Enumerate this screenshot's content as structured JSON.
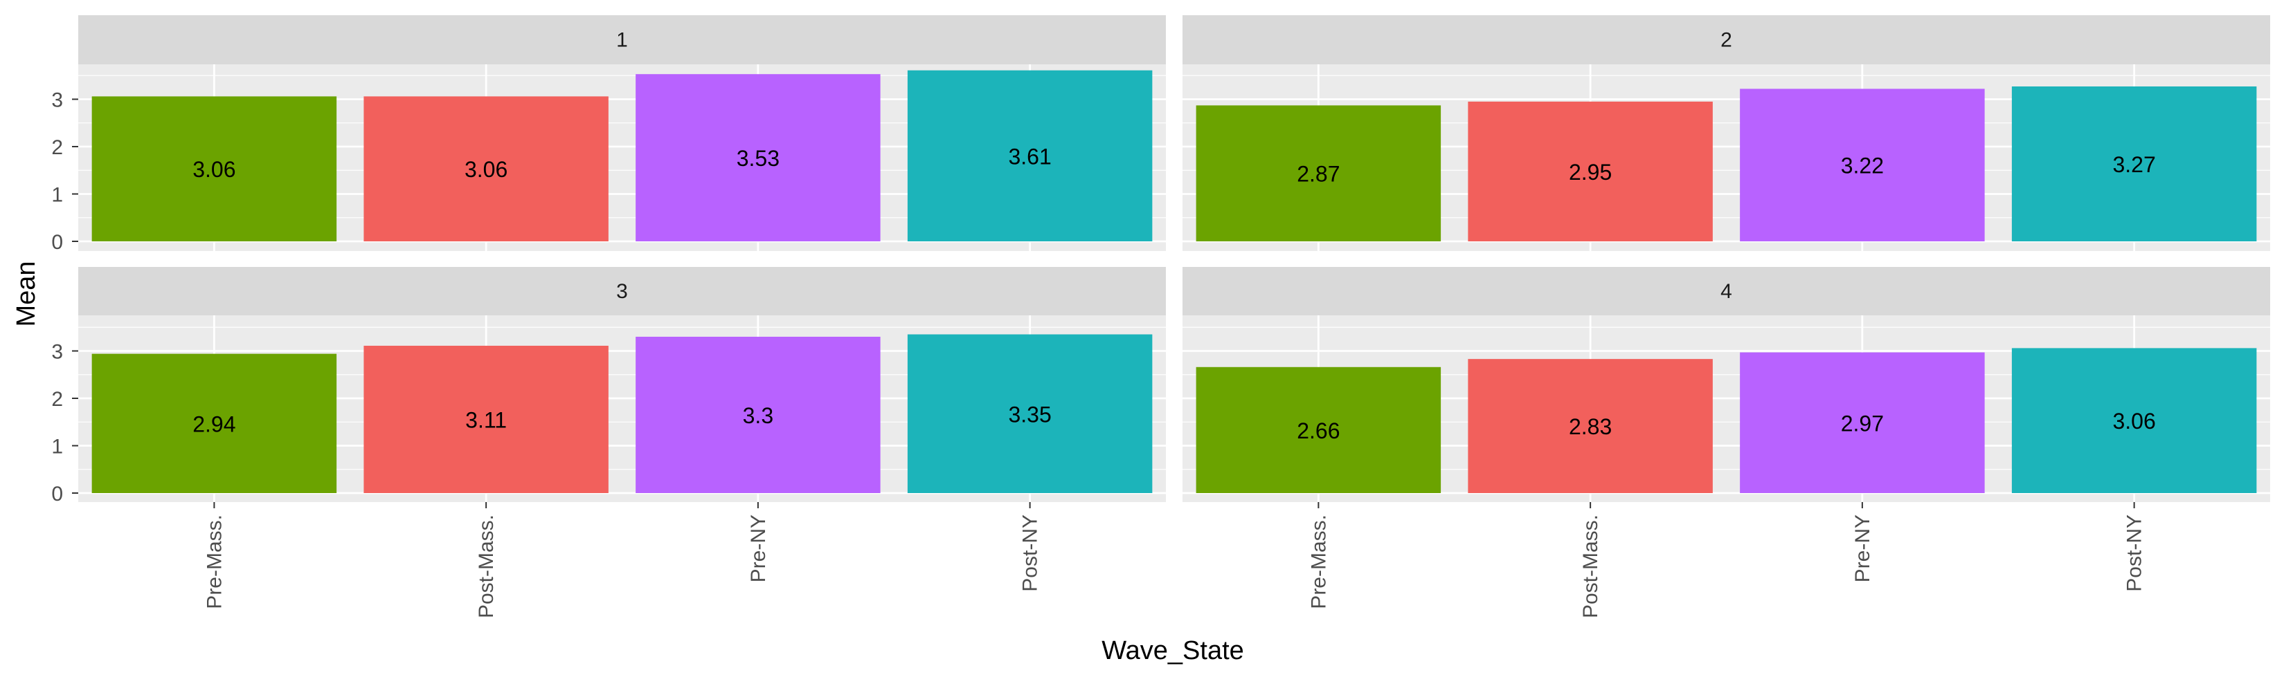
{
  "chart_data": {
    "type": "bar",
    "xlabel": "Wave_State",
    "ylabel": "Mean",
    "ylim": [
      0,
      4
    ],
    "yticks": [
      0,
      1,
      2,
      3
    ],
    "categories": [
      "Pre-Mass.",
      "Post-Mass.",
      "Pre-NY",
      "Post-NY"
    ],
    "colors": [
      "#6BA300",
      "#F2605C",
      "#B862FF",
      "#1CB4BA"
    ],
    "panel_bg": "#EBEBEB",
    "strip_bg": "#D9D9D9",
    "grid_color": "#FFFFFF",
    "legend": "none",
    "panels": [
      {
        "label": "1",
        "values": [
          3.06,
          3.06,
          3.53,
          3.61
        ],
        "labels": [
          "3.06",
          "3.06",
          "3.53",
          "3.61"
        ]
      },
      {
        "label": "2",
        "values": [
          2.87,
          2.95,
          3.22,
          3.27
        ],
        "labels": [
          "2.87",
          "2.95",
          "3.22",
          "3.27"
        ]
      },
      {
        "label": "3",
        "values": [
          2.94,
          3.11,
          3.3,
          3.35
        ],
        "labels": [
          "2.94",
          "3.11",
          "3.3",
          "3.35"
        ]
      },
      {
        "label": "4",
        "values": [
          2.66,
          2.83,
          2.97,
          3.06
        ],
        "labels": [
          "2.66",
          "2.83",
          "2.97",
          "3.06"
        ]
      }
    ]
  }
}
